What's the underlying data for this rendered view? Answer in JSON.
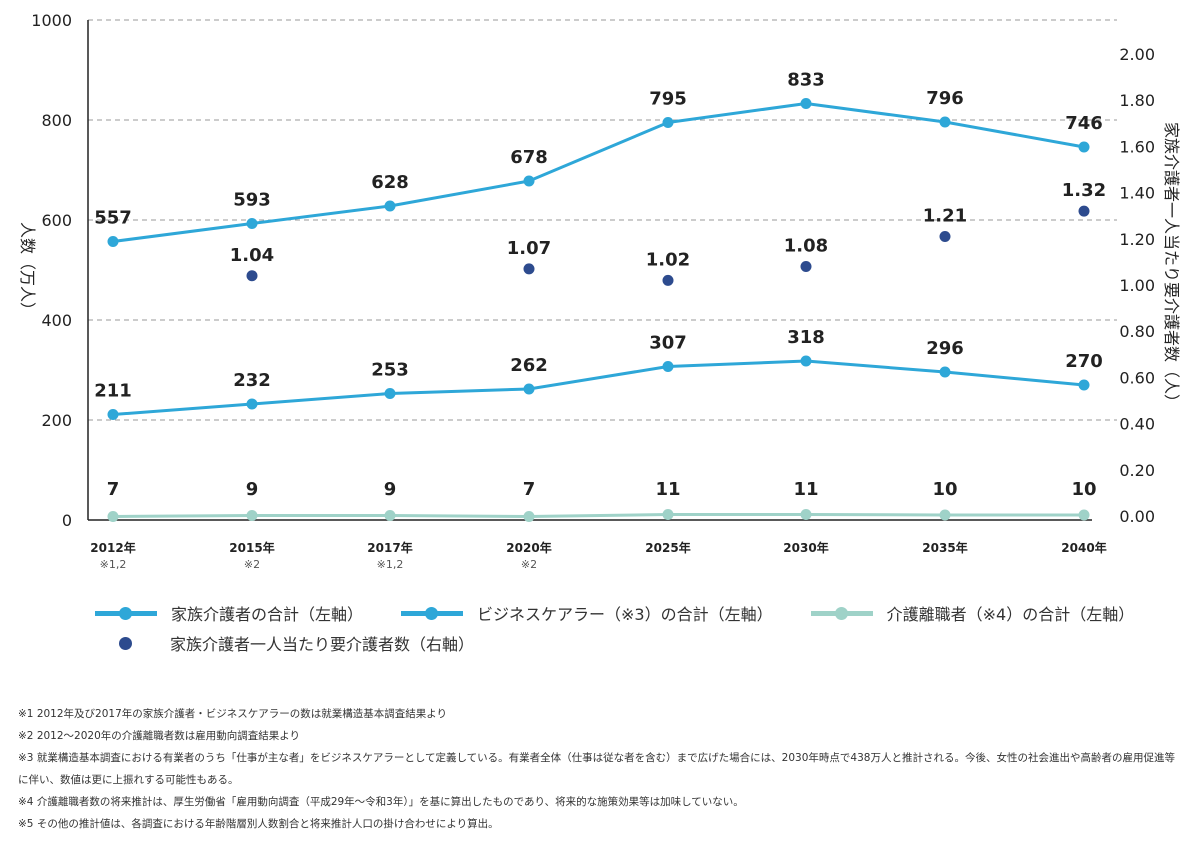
{
  "chart_data": {
    "type": "line",
    "categories": [
      "2012年",
      "2015年",
      "2017年",
      "2020年",
      "2025年",
      "2030年",
      "2035年",
      "2040年"
    ],
    "category_notes": [
      "※1,2",
      "※2",
      "※1,2",
      "※2",
      "",
      "",
      "",
      ""
    ],
    "left_axis": {
      "label": "人数（万人）",
      "ticks": [
        "1000",
        "800",
        "600",
        "400",
        "200",
        "0"
      ],
      "range": [
        0,
        1000
      ]
    },
    "right_axis": {
      "label": "家族介護者一人当たり要介護者数（人）",
      "ticks": [
        "2.00",
        "1.80",
        "1.60",
        "1.40",
        "1.20",
        "1.00",
        "0.80",
        "0.60",
        "0.40",
        "0.20",
        "0.00"
      ],
      "range": [
        0,
        2
      ]
    },
    "series": [
      {
        "name": "家族介護者の合計（左軸）",
        "axis": "left",
        "style": "line",
        "color": "#2ea7d8",
        "values": [
          557,
          593,
          628,
          678,
          795,
          833,
          796,
          746
        ],
        "labels": [
          "557",
          "593",
          "628",
          "678",
          "795",
          "833",
          "796",
          "746"
        ]
      },
      {
        "name": "ビジネスケアラー（※3）の合計（左軸）",
        "axis": "left",
        "style": "line",
        "color": "#2ea7d8",
        "values": [
          211,
          232,
          253,
          262,
          307,
          318,
          296,
          270
        ],
        "labels": [
          "211",
          "232",
          "253",
          "262",
          "307",
          "318",
          "296",
          "270"
        ]
      },
      {
        "name": "介護離職者（※4）の合計（左軸）",
        "axis": "left",
        "style": "line",
        "color": "#9fd2c8",
        "values": [
          7,
          9,
          9,
          7,
          11,
          11,
          10,
          10
        ],
        "labels": [
          "7",
          "9",
          "9",
          "7",
          "11",
          "11",
          "10",
          "10"
        ]
      },
      {
        "name": "家族介護者一人当たり要介護者数（右軸）",
        "axis": "right",
        "style": "dot",
        "color": "#2d4b8e",
        "values": [
          null,
          1.04,
          null,
          1.07,
          1.02,
          1.08,
          1.21,
          1.32
        ],
        "labels": [
          "",
          "1.04",
          "",
          "1.07",
          "1.02",
          "1.08",
          "1.21",
          "1.32"
        ]
      }
    ],
    "grid": "dashed horizontal"
  },
  "notes": [
    "※1 2012年及び2017年の家族介護者・ビジネスケアラーの数は就業構造基本調査結果より",
    "※2 2012～2020年の介護離職者数は雇用動向調査結果より",
    "※3 就業構造基本調査における有業者のうち「仕事が主な者」をビジネスケアラーとして定義している。有業者全体（仕事は従な者を含む）まで広げた場合には、2030年時点で438万人と推計される。今後、女性の社会進出や高齢者の雇用促進等に伴い、数値は更に上振れする可能性もある。",
    "※4 介護離職者数の将来推計は、厚生労働省「雇用動向調査（平成29年～令和3年）」を基に算出したものであり、将来的な施策効果等は加味していない。",
    "※5 その他の推計値は、各調査における年齢階層別人数割合と将来推計人口の掛け合わせにより算出。"
  ]
}
